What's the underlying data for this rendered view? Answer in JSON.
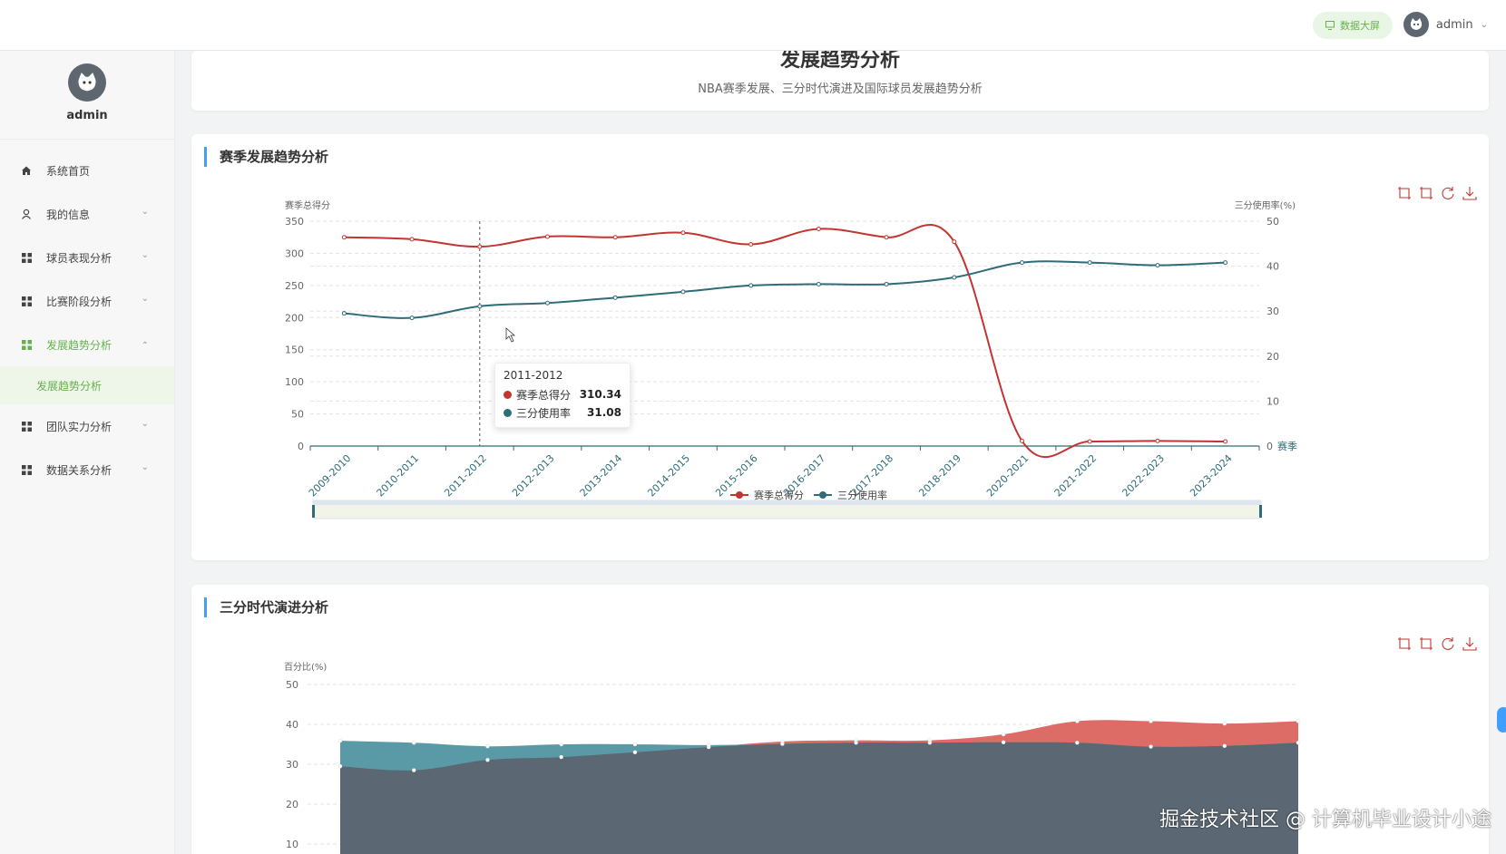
{
  "header": {
    "screen_button": "数据大屏",
    "user": "admin"
  },
  "sidebar": {
    "profile_name": "admin",
    "items": [
      {
        "label": "系统首页",
        "icon": "home-icon",
        "has_chevron": false
      },
      {
        "label": "我的信息",
        "icon": "user-icon",
        "has_chevron": true
      },
      {
        "label": "球员表现分析",
        "icon": "grid-icon",
        "has_chevron": true
      },
      {
        "label": "比赛阶段分析",
        "icon": "grid-icon",
        "has_chevron": true
      },
      {
        "label": "发展趋势分析",
        "icon": "grid-icon",
        "has_chevron": true,
        "active": true
      },
      {
        "label": "团队实力分析",
        "icon": "grid-icon",
        "has_chevron": true
      },
      {
        "label": "数据关系分析",
        "icon": "grid-icon",
        "has_chevron": true
      }
    ],
    "sub_item": "发展趋势分析"
  },
  "page": {
    "title": "发展趋势分析",
    "subtitle": "NBA赛季发展、三分时代演进及国际球员发展趋势分析"
  },
  "section1": {
    "title": "赛季发展趋势分析"
  },
  "section2": {
    "title": "三分时代演进分析"
  },
  "tooltip": {
    "title": "2011-2012",
    "rows": [
      {
        "label": "赛季总得分",
        "value": "310.34"
      },
      {
        "label": "三分使用率",
        "value": "31.08"
      }
    ]
  },
  "colors": {
    "accent": "#67b04e",
    "red": "#c23531",
    "teal": "#2f6c78",
    "blue": "#409eff"
  },
  "watermark": "掘金技术社区 @ 计算机毕业设计小途",
  "chart_data": [
    {
      "type": "line",
      "x": [
        "2009-2010",
        "2010-2011",
        "2011-2012",
        "2012-2013",
        "2013-2014",
        "2014-2015",
        "2015-2016",
        "2016-2017",
        "2017-2018",
        "2018-2019",
        "2020-2021",
        "2021-2022",
        "2022-2023",
        "2023-2024"
      ],
      "series": [
        {
          "name": "赛季总得分",
          "axis": "left",
          "color": "#c23531",
          "values": [
            325,
            322,
            310.34,
            326,
            325,
            332,
            314,
            338,
            325,
            318,
            8,
            7,
            8,
            7
          ]
        },
        {
          "name": "三分使用率",
          "axis": "right",
          "color": "#2f6c78",
          "values": [
            29.5,
            28.5,
            31.08,
            31.8,
            33,
            34.3,
            35.7,
            36,
            36,
            37.5,
            40.8,
            40.8,
            40.2,
            40.8
          ]
        }
      ],
      "ylabel_left": "赛季总得分",
      "ylabel_right": "三分使用率(%)",
      "xlabel": "赛季",
      "ylim_left": [
        0,
        350
      ],
      "ylim_right": [
        0,
        50
      ],
      "yticks_left": [
        "350",
        "300",
        "250",
        "200",
        "150",
        "100",
        "50",
        "0"
      ],
      "yticks_right": [
        "50",
        "40",
        "30",
        "20",
        "10",
        "0"
      ],
      "grid": true,
      "legend": "bottom"
    },
    {
      "type": "area",
      "x_count": 14,
      "series": [
        {
          "color": "#dd6b66",
          "values": [
            29.5,
            28.5,
            31.08,
            31.8,
            33,
            34.3,
            35.7,
            36,
            36,
            37.5,
            40.8,
            40.8,
            40.2,
            40.8
          ]
        },
        {
          "color": "#5a9aa6",
          "values": [
            35.9,
            35.4,
            34.5,
            35,
            35,
            34.8,
            35.1,
            35.4,
            35.4,
            35.5,
            35.4,
            34.4,
            34.6,
            35.4
          ]
        }
      ],
      "ylabel": "百分比(%)",
      "ylim": [
        10,
        50
      ],
      "yticks": [
        "50",
        "40",
        "30",
        "20",
        "10"
      ],
      "grid": true
    }
  ]
}
